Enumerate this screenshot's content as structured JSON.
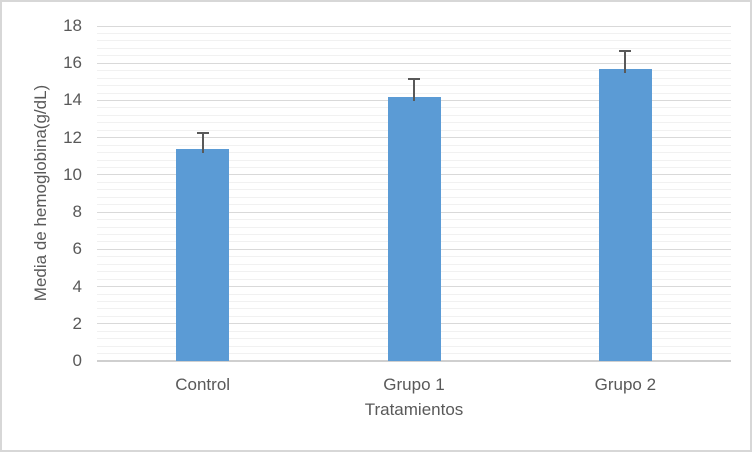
{
  "chart_data": {
    "type": "bar",
    "title": "",
    "xlabel": "Tratamientos",
    "ylabel": "Media de hemoglobina(g/dL)",
    "categories": [
      "Control",
      "Grupo 1",
      "Grupo 2"
    ],
    "values": [
      11.4,
      14.2,
      15.7
    ],
    "errors_plus": [
      0.9,
      1.0,
      1.0
    ],
    "ylim": [
      0,
      18
    ],
    "ytick_step": 2,
    "yminor_step": 0.4,
    "yticks": [
      "0",
      "2",
      "4",
      "6",
      "8",
      "10",
      "12",
      "14",
      "16",
      "18"
    ],
    "legend": "none",
    "grid": "horizontal major and minor",
    "colors": {
      "bar_fill": "#5B9BD5",
      "error_bar": "#595959",
      "gridline_major": "#D9D9D9",
      "gridline_minor": "#F1F1F1",
      "axis_line": "#CFCFCF",
      "text": "#595959",
      "chart_border": "#D7D7D7",
      "background": "#FFFFFF"
    }
  }
}
